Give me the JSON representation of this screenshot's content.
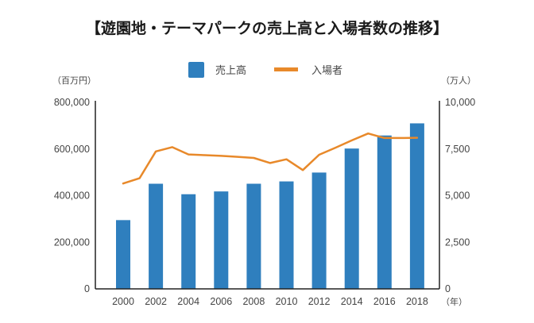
{
  "chart_data": {
    "type": "bar+line",
    "title": "【遊園地・テーマパークの売上高と入場者数の推移】",
    "categories": [
      "2000",
      "2002",
      "2004",
      "2006",
      "2008",
      "2010",
      "2012",
      "2014",
      "2016",
      "2018"
    ],
    "xlabel": "（年）",
    "colors": {
      "bar": "#2f7fbe",
      "line": "#e8892a",
      "axis": "#222222"
    },
    "legend": {
      "position": "top-center",
      "entries": [
        "売上高",
        "入場者"
      ]
    },
    "left_axis": {
      "label": "（百万円）",
      "ylim": [
        0,
        800000
      ],
      "ticks": [
        0,
        200000,
        400000,
        600000,
        800000
      ],
      "tick_labels": [
        "0",
        "200,000",
        "400,000",
        "600,000",
        "800,000"
      ]
    },
    "right_axis": {
      "label": "（万人）",
      "ylim": [
        0,
        10000
      ],
      "ticks": [
        0,
        2500,
        5000,
        7500,
        10000
      ],
      "tick_labels": [
        "0",
        "2,500",
        "5,000",
        "7,500",
        "10,000"
      ]
    },
    "series": [
      {
        "name": "売上高",
        "type": "bar",
        "axis": "left",
        "x": [
          2000,
          2002,
          2004,
          2006,
          2008,
          2010,
          2012,
          2014,
          2016,
          2018
        ],
        "values": [
          295000,
          451000,
          406000,
          418000,
          451000,
          461000,
          499000,
          602000,
          658000,
          710000
        ]
      },
      {
        "name": "入場者",
        "type": "line",
        "axis": "right",
        "x": [
          2000,
          2001,
          2002,
          2003,
          2004,
          2005,
          2006,
          2007,
          2008,
          2009,
          2010,
          2011,
          2012,
          2013,
          2014,
          2015,
          2016,
          2017,
          2018
        ],
        "values": [
          5650,
          5930,
          7370,
          7600,
          7210,
          7170,
          7130,
          7080,
          7020,
          6750,
          6950,
          6370,
          7190,
          7570,
          7960,
          8330,
          8090,
          8090,
          8100
        ]
      }
    ]
  }
}
